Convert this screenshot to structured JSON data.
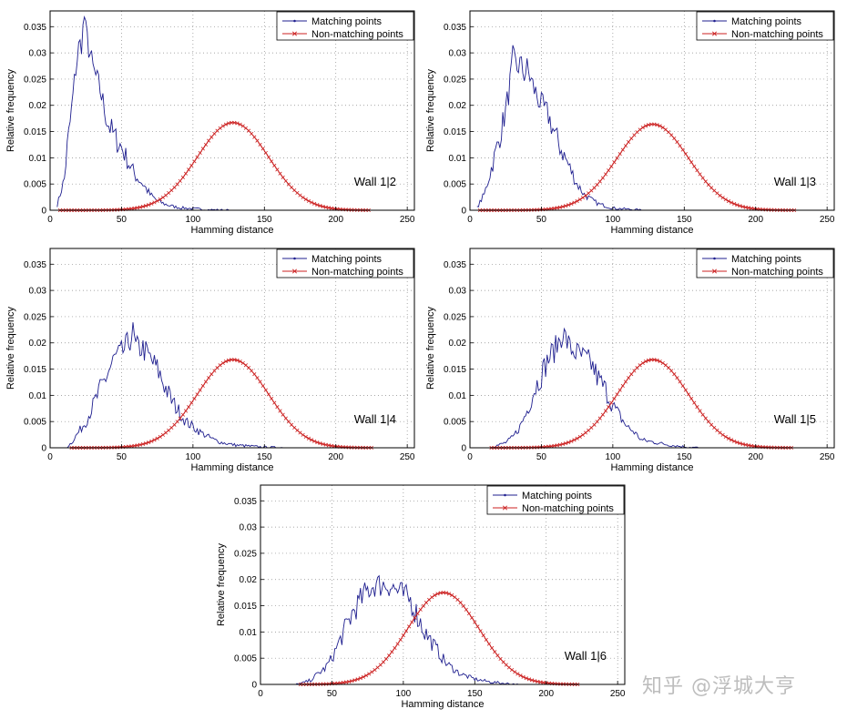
{
  "chart_data": [
    {
      "type": "line",
      "xlabel": "Hamming distance",
      "ylabel": "Relative frequency",
      "xlim": [
        0,
        255
      ],
      "ylim": [
        0,
        0.038
      ],
      "xticks": [
        0,
        50,
        100,
        150,
        200,
        250
      ],
      "yticks": [
        0,
        0.005,
        0.01,
        0.015,
        0.02,
        0.025,
        0.03,
        0.035
      ],
      "grid": true,
      "legend": "top-right",
      "annotation": "Wall 1|2",
      "series": [
        {
          "name": "Matching points",
          "color": "#1f1f8f",
          "marker": "dot",
          "x": [
            5,
            8,
            10,
            12,
            15,
            18,
            20,
            22,
            24,
            25,
            27,
            30,
            35,
            40,
            45,
            50,
            55,
            60,
            65,
            70,
            75,
            80,
            85,
            90,
            100,
            110,
            125
          ],
          "y": [
            0.001,
            0.004,
            0.006,
            0.012,
            0.019,
            0.027,
            0.031,
            0.032,
            0.037,
            0.034,
            0.031,
            0.027,
            0.023,
            0.017,
            0.014,
            0.012,
            0.009,
            0.0065,
            0.005,
            0.003,
            0.0018,
            0.0012,
            0.0008,
            0.0005,
            0.0003,
            0.0001,
            0.0
          ]
        },
        {
          "name": "Non-matching points",
          "color": "#cc2222",
          "marker": "x",
          "mean": 128,
          "sd": 25,
          "peak": 0.0167,
          "x_range": [
            7,
            223
          ]
        }
      ]
    },
    {
      "type": "line",
      "xlabel": "Hamming distance",
      "ylabel": "Relative frequency",
      "xlim": [
        0,
        255
      ],
      "ylim": [
        0,
        0.038
      ],
      "xticks": [
        0,
        50,
        100,
        150,
        200,
        250
      ],
      "yticks": [
        0,
        0.005,
        0.01,
        0.015,
        0.02,
        0.025,
        0.03,
        0.035
      ],
      "grid": true,
      "legend": "top-right",
      "annotation": "Wall 1|3",
      "series": [
        {
          "name": "Matching points",
          "color": "#1f1f8f",
          "marker": "dot",
          "x": [
            5,
            10,
            15,
            20,
            25,
            28,
            30,
            33,
            35,
            38,
            40,
            45,
            50,
            55,
            60,
            65,
            70,
            75,
            80,
            85,
            90,
            95,
            100,
            110,
            120
          ],
          "y": [
            0.0005,
            0.003,
            0.008,
            0.013,
            0.019,
            0.024,
            0.029,
            0.027,
            0.028,
            0.026,
            0.027,
            0.023,
            0.02,
            0.018,
            0.014,
            0.011,
            0.008,
            0.005,
            0.003,
            0.002,
            0.0012,
            0.0008,
            0.0004,
            0.0002,
            0.0
          ]
        },
        {
          "name": "Non-matching points",
          "color": "#cc2222",
          "marker": "x",
          "mean": 128,
          "sd": 25,
          "peak": 0.0164,
          "x_range": [
            7,
            228
          ]
        }
      ]
    },
    {
      "type": "line",
      "xlabel": "Hamming distance",
      "ylabel": "Relative frequency",
      "xlim": [
        0,
        255
      ],
      "ylim": [
        0,
        0.038
      ],
      "xticks": [
        0,
        50,
        100,
        150,
        200,
        250
      ],
      "yticks": [
        0,
        0.005,
        0.01,
        0.015,
        0.02,
        0.025,
        0.03,
        0.035
      ],
      "grid": true,
      "legend": "top-right",
      "annotation": "Wall 1|4",
      "series": [
        {
          "name": "Matching points",
          "color": "#1f1f8f",
          "marker": "dot",
          "x": [
            12,
            15,
            20,
            25,
            30,
            35,
            40,
            45,
            50,
            55,
            58,
            60,
            65,
            70,
            75,
            80,
            85,
            90,
            95,
            100,
            105,
            110,
            115,
            120,
            130,
            140,
            150,
            165
          ],
          "y": [
            0.0002,
            0.001,
            0.003,
            0.005,
            0.008,
            0.011,
            0.014,
            0.017,
            0.018,
            0.02,
            0.022,
            0.019,
            0.019,
            0.017,
            0.015,
            0.012,
            0.009,
            0.007,
            0.005,
            0.004,
            0.003,
            0.0022,
            0.0015,
            0.001,
            0.0005,
            0.0003,
            0.0001,
            0.0
          ]
        },
        {
          "name": "Non-matching points",
          "color": "#cc2222",
          "marker": "x",
          "mean": 128,
          "sd": 25,
          "peak": 0.0168,
          "x_range": [
            15,
            225
          ]
        }
      ]
    },
    {
      "type": "line",
      "xlabel": "Hamming distance",
      "ylabel": "Relative frequency",
      "xlim": [
        0,
        255
      ],
      "ylim": [
        0,
        0.038
      ],
      "xticks": [
        0,
        50,
        100,
        150,
        200,
        250
      ],
      "yticks": [
        0,
        0.005,
        0.01,
        0.015,
        0.02,
        0.025,
        0.03,
        0.035
      ],
      "grid": true,
      "legend": "top-right",
      "annotation": "Wall 1|5",
      "series": [
        {
          "name": "Matching points",
          "color": "#1f1f8f",
          "marker": "dot",
          "x": [
            15,
            20,
            25,
            30,
            35,
            40,
            45,
            50,
            55,
            60,
            65,
            70,
            75,
            80,
            85,
            90,
            95,
            100,
            105,
            110,
            115,
            120,
            130,
            140,
            150,
            160
          ],
          "y": [
            0.0002,
            0.0005,
            0.001,
            0.002,
            0.004,
            0.007,
            0.011,
            0.014,
            0.017,
            0.019,
            0.022,
            0.019,
            0.018,
            0.017,
            0.016,
            0.013,
            0.011,
            0.008,
            0.006,
            0.004,
            0.003,
            0.0015,
            0.001,
            0.0005,
            0.0002,
            0.0
          ]
        },
        {
          "name": "Non-matching points",
          "color": "#cc2222",
          "marker": "x",
          "mean": 128,
          "sd": 25,
          "peak": 0.0168,
          "x_range": [
            15,
            225
          ]
        }
      ]
    },
    {
      "type": "line",
      "xlabel": "Hamming distance",
      "ylabel": "Relative frequency",
      "xlim": [
        0,
        255
      ],
      "ylim": [
        0,
        0.038
      ],
      "xticks": [
        0,
        50,
        100,
        150,
        200,
        250
      ],
      "yticks": [
        0,
        0.005,
        0.01,
        0.015,
        0.02,
        0.025,
        0.03,
        0.035
      ],
      "grid": true,
      "legend": "top-right",
      "annotation": "Wall 1|6",
      "series": [
        {
          "name": "Matching points",
          "color": "#1f1f8f",
          "marker": "dot",
          "x": [
            25,
            30,
            35,
            40,
            45,
            50,
            55,
            60,
            65,
            70,
            75,
            80,
            85,
            90,
            95,
            100,
            105,
            110,
            115,
            120,
            125,
            130,
            135,
            140,
            150,
            160,
            170,
            180
          ],
          "y": [
            0.0,
            0.0003,
            0.0008,
            0.002,
            0.003,
            0.005,
            0.008,
            0.011,
            0.014,
            0.016,
            0.018,
            0.019,
            0.019,
            0.019,
            0.018,
            0.017,
            0.016,
            0.013,
            0.01,
            0.008,
            0.006,
            0.004,
            0.003,
            0.002,
            0.001,
            0.0005,
            0.0002,
            0.0
          ]
        },
        {
          "name": "Non-matching points",
          "color": "#cc2222",
          "marker": "x",
          "mean": 128,
          "sd": 25,
          "peak": 0.0175,
          "x_range": [
            28,
            222
          ]
        }
      ]
    }
  ],
  "watermark": "知乎 @浮城大亨"
}
